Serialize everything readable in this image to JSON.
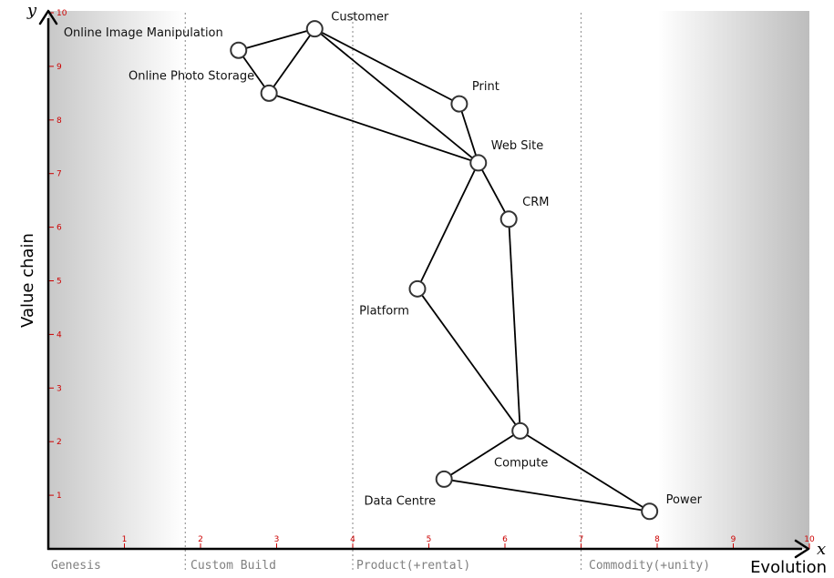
{
  "axes": {
    "y_var": "y",
    "x_var": "x",
    "y_title": "Value chain",
    "x_title": "Evolution",
    "ticks": [
      "1",
      "2",
      "3",
      "4",
      "5",
      "6",
      "7",
      "8",
      "9",
      "10"
    ]
  },
  "stages": [
    "Genesis",
    "Custom Build",
    "Product(+rental)",
    "Commodity(+unity)"
  ],
  "stage_boundaries": [
    1.8,
    4.0,
    7.0
  ],
  "colors": {
    "tick": "#cc0000",
    "stage_text": "#808080",
    "edge": "#000000",
    "node_stroke": "#333333"
  },
  "chart_data": {
    "type": "scatter",
    "xlim": [
      0,
      10
    ],
    "ylim": [
      0,
      10
    ],
    "nodes": [
      {
        "id": "customer",
        "label": "Customer",
        "x": 3.5,
        "y": 9.7
      },
      {
        "id": "image",
        "label": "Online Image Manipulation",
        "x": 2.5,
        "y": 9.3
      },
      {
        "id": "storage",
        "label": "Online Photo Storage",
        "x": 2.9,
        "y": 8.5
      },
      {
        "id": "print",
        "label": "Print",
        "x": 5.4,
        "y": 8.3
      },
      {
        "id": "website",
        "label": "Web Site",
        "x": 5.65,
        "y": 7.2
      },
      {
        "id": "crm",
        "label": "CRM",
        "x": 6.05,
        "y": 6.15
      },
      {
        "id": "platform",
        "label": "Platform",
        "x": 4.85,
        "y": 4.85
      },
      {
        "id": "compute",
        "label": "Compute",
        "x": 6.2,
        "y": 2.2
      },
      {
        "id": "datacentre",
        "label": "Data Centre",
        "x": 5.2,
        "y": 1.3
      },
      {
        "id": "power",
        "label": "Power",
        "x": 7.9,
        "y": 0.7
      }
    ],
    "edges": [
      [
        "customer",
        "image"
      ],
      [
        "customer",
        "storage"
      ],
      [
        "customer",
        "print"
      ],
      [
        "customer",
        "website"
      ],
      [
        "image",
        "storage"
      ],
      [
        "storage",
        "website"
      ],
      [
        "print",
        "website"
      ],
      [
        "website",
        "crm"
      ],
      [
        "website",
        "platform"
      ],
      [
        "crm",
        "compute"
      ],
      [
        "platform",
        "compute"
      ],
      [
        "compute",
        "datacentre"
      ],
      [
        "compute",
        "power"
      ],
      [
        "datacentre",
        "power"
      ]
    ]
  }
}
